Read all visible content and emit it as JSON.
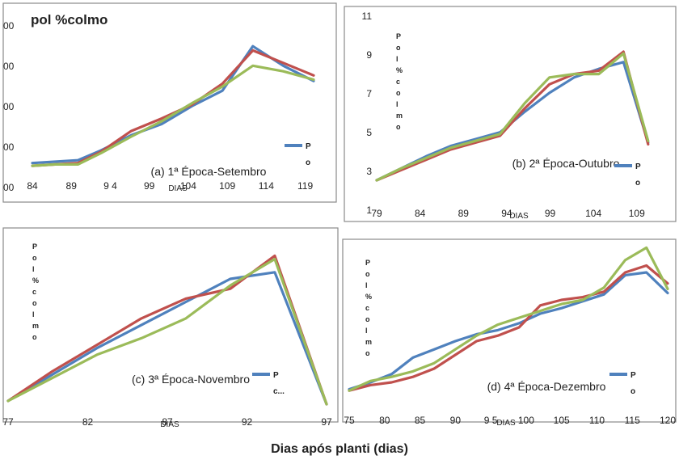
{
  "figure": {
    "top_label": "pol %colmo",
    "bottom_label": "Dias após planti (dias)"
  },
  "colors": {
    "blue": "#4f81bd",
    "red": "#c0504d",
    "green": "#9bbb59"
  },
  "chart_data": [
    {
      "type": "line",
      "title": "(a) 1ª Época-Setembro",
      "xlabel": "DIAS",
      "xlabel_overlap": "19",
      "ylabel": "",
      "legend": [
        "P",
        "o"
      ],
      "legend_position": "right",
      "xlim": [
        84,
        121
      ],
      "ylim": [
        0,
        100
      ],
      "xticks": [
        "84",
        "89",
        "9 4",
        "99",
        "104",
        "109",
        "114",
        "119"
      ],
      "yticks": [
        "00",
        "00",
        "00",
        "00",
        "00"
      ],
      "series": [
        {
          "color": "blue",
          "x": [
            84,
            87,
            90,
            93,
            97,
            101,
            105,
            109,
            113,
            117,
            121
          ],
          "y": [
            6,
            7,
            8,
            15,
            26,
            34,
            47,
            58,
            90,
            76,
            65
          ]
        },
        {
          "color": "red",
          "x": [
            84,
            87,
            90,
            93,
            97,
            101,
            105,
            109,
            113,
            117,
            121
          ],
          "y": [
            4,
            5,
            6,
            14,
            29,
            38,
            48,
            63,
            87,
            78,
            69
          ]
        },
        {
          "color": "green",
          "x": [
            84,
            87,
            90,
            93,
            97,
            101,
            105,
            109,
            113,
            117,
            121
          ],
          "y": [
            4,
            5,
            5,
            13,
            25,
            36,
            49,
            61,
            76,
            72,
            66
          ]
        }
      ]
    },
    {
      "type": "line",
      "title": "(b) 2ª Época-Outubro",
      "xlabel": "DIAS",
      "xlabel_overlap": "99",
      "ylabel": "Pol%colmo",
      "legend": [
        "P",
        "o"
      ],
      "legend_position": "right",
      "xlim": [
        79,
        113
      ],
      "ylim": [
        1,
        11
      ],
      "xticks": [
        "79",
        "84",
        "89",
        "94",
        "99",
        "104",
        "109"
      ],
      "yticks": [
        "1",
        "3",
        "5",
        "7",
        "9",
        "11"
      ],
      "series": [
        {
          "color": "blue",
          "x": [
            79,
            82,
            85,
            88,
            91,
            94,
            97,
            100,
            103,
            106,
            109,
            112
          ],
          "y": [
            1.8,
            2.5,
            3.2,
            3.8,
            4.2,
            4.6,
            5.8,
            6.9,
            7.8,
            8.3,
            8.7,
            4.0
          ]
        },
        {
          "color": "red",
          "x": [
            79,
            82,
            85,
            88,
            91,
            94,
            97,
            100,
            103,
            106,
            109,
            112
          ],
          "y": [
            1.8,
            2.4,
            3.0,
            3.6,
            4.0,
            4.4,
            6.0,
            7.4,
            8.0,
            8.2,
            9.3,
            3.9
          ]
        },
        {
          "color": "green",
          "x": [
            79,
            82,
            85,
            88,
            91,
            94,
            97,
            100,
            103,
            106,
            109,
            112
          ],
          "y": [
            1.8,
            2.5,
            3.1,
            3.7,
            4.1,
            4.5,
            6.3,
            7.8,
            8.0,
            8.0,
            9.2,
            4.1
          ]
        }
      ]
    },
    {
      "type": "line",
      "title": "(c) 3ª Época-Novembro",
      "xlabel": "DIAS",
      "xlabel_overlap": "87",
      "ylabel": "Pol%colmo",
      "legend": [
        "P",
        "c..."
      ],
      "legend_position": "right",
      "xlim": [
        77,
        98.5
      ],
      "ylim": [
        0,
        100
      ],
      "xticks": [
        "77",
        "82",
        "87",
        "92",
        "97"
      ],
      "yticks": [],
      "series": [
        {
          "color": "blue",
          "x": [
            77,
            80,
            83,
            86,
            89,
            92,
            95,
            98.5
          ],
          "y": [
            2,
            18,
            34,
            48,
            62,
            76,
            80,
            0
          ]
        },
        {
          "color": "red",
          "x": [
            77,
            80,
            83,
            86,
            89,
            92,
            95,
            98.5
          ],
          "y": [
            2,
            20,
            36,
            52,
            64,
            70,
            90,
            0
          ]
        },
        {
          "color": "green",
          "x": [
            77,
            80,
            83,
            86,
            89,
            92,
            95,
            98.5
          ],
          "y": [
            2,
            16,
            30,
            40,
            52,
            72,
            88,
            0
          ]
        }
      ]
    },
    {
      "type": "line",
      "title": "(d) 4ª Época-Dezembro",
      "xlabel": "DIAS",
      "xlabel_overlap": "95",
      "ylabel": "Pol%colmo",
      "legend": [
        "P",
        "o"
      ],
      "legend_position": "right",
      "xlim": [
        75,
        120
      ],
      "ylim": [
        0,
        100
      ],
      "xticks": [
        "75",
        "80",
        "85",
        "90",
        "9 5",
        "100",
        "105",
        "110",
        "115",
        "120"
      ],
      "yticks": [],
      "series": [
        {
          "color": "blue",
          "x": [
            75,
            78,
            81,
            84,
            87,
            90,
            93,
            96,
            99,
            102,
            105,
            108,
            111,
            114,
            117,
            120
          ],
          "y": [
            5,
            10,
            16,
            28,
            34,
            40,
            45,
            48,
            53,
            60,
            64,
            69,
            74,
            88,
            90,
            75
          ]
        },
        {
          "color": "red",
          "x": [
            75,
            78,
            81,
            84,
            87,
            90,
            93,
            96,
            99,
            102,
            105,
            108,
            111,
            114,
            117,
            120
          ],
          "y": [
            4,
            8,
            10,
            14,
            20,
            30,
            40,
            44,
            50,
            66,
            70,
            72,
            76,
            90,
            95,
            82
          ]
        },
        {
          "color": "green",
          "x": [
            75,
            78,
            81,
            84,
            87,
            90,
            93,
            96,
            99,
            102,
            105,
            108,
            111,
            114,
            117,
            120
          ],
          "y": [
            4,
            11,
            14,
            18,
            24,
            34,
            44,
            52,
            57,
            62,
            67,
            70,
            79,
            99,
            108,
            78
          ]
        }
      ]
    }
  ]
}
